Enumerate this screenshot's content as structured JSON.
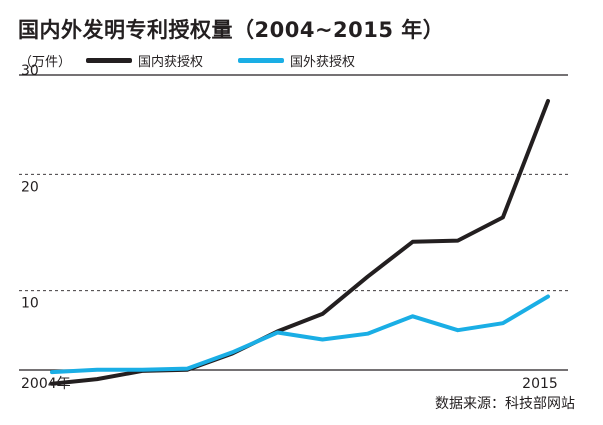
{
  "chart_data": {
    "type": "line",
    "title": "国内外发明专利授权量（2004~2015 年）",
    "unit_label": "（万件）",
    "x": [
      2004,
      2005,
      2006,
      2007,
      2008,
      2009,
      2010,
      2011,
      2012,
      2013,
      2014,
      2015
    ],
    "x_tick_labels": [
      {
        "x": 2004,
        "label": "2004年"
      },
      {
        "x": 2015,
        "label": "2015"
      }
    ],
    "y_ticks": [
      10,
      20,
      30
    ],
    "ylim": [
      0,
      30
    ],
    "grid": "dashed-horizontal",
    "legend_position": "top",
    "series": [
      {
        "name": "国内获授权",
        "color": "#231f20",
        "values": [
          2.0,
          2.4,
          3.1,
          3.2,
          4.6,
          6.5,
          8.0,
          11.2,
          14.2,
          14.3,
          16.3,
          26.3
        ]
      },
      {
        "name": "国外获授权",
        "color": "#1aaee5",
        "values": [
          3.0,
          3.2,
          3.2,
          3.3,
          4.7,
          6.4,
          5.8,
          6.3,
          7.8,
          6.6,
          7.2,
          9.5
        ]
      }
    ],
    "source": "数据来源：科技部网站"
  }
}
